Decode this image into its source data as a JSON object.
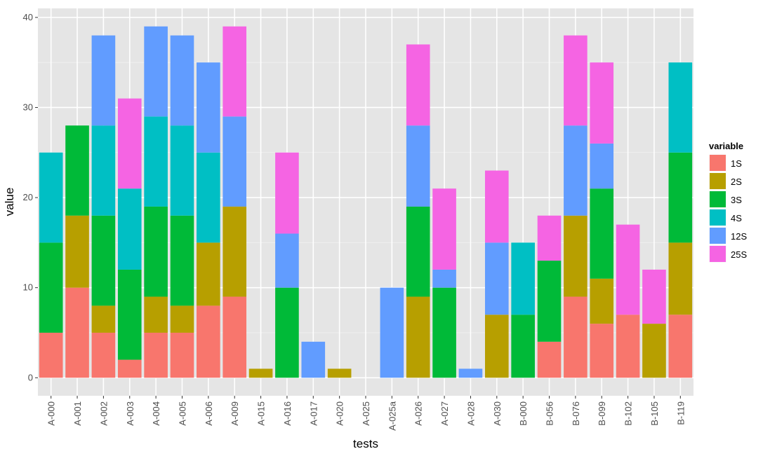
{
  "chart_data": {
    "type": "bar",
    "stacked": true,
    "title": "",
    "xlabel": "tests",
    "ylabel": "value",
    "ylim": [
      -2,
      41
    ],
    "yticks": [
      0,
      10,
      20,
      30,
      40
    ],
    "grid": true,
    "legend_title": "variable",
    "legend_position": "right",
    "categories": [
      "A-000",
      "A-001",
      "A-002",
      "A-003",
      "A-004",
      "A-005",
      "A-006",
      "A-009",
      "A-015",
      "A-016",
      "A-017",
      "A-020",
      "A-025",
      "A-025a",
      "A-026",
      "A-027",
      "A-028",
      "A-030",
      "B-000",
      "B-056",
      "B-076",
      "B-099",
      "B-102",
      "B-105",
      "B-119"
    ],
    "series": [
      {
        "name": "1S",
        "color": "#F8766D",
        "values": [
          5,
          10,
          5,
          2,
          5,
          5,
          8,
          9,
          0,
          0,
          0,
          0,
          0,
          0,
          0,
          0,
          0,
          0,
          0,
          4,
          9,
          6,
          7,
          0,
          7
        ]
      },
      {
        "name": "2S",
        "color": "#B79F00",
        "values": [
          0,
          8,
          3,
          0,
          4,
          3,
          7,
          10,
          1,
          0,
          0,
          1,
          0,
          0,
          9,
          0,
          0,
          7,
          0,
          0,
          9,
          5,
          0,
          6,
          8
        ]
      },
      {
        "name": "3S",
        "color": "#00BA38",
        "values": [
          10,
          10,
          10,
          10,
          10,
          10,
          0,
          0,
          0,
          10,
          0,
          0,
          0,
          0,
          10,
          10,
          0,
          0,
          7,
          9,
          0,
          10,
          0,
          0,
          10
        ]
      },
      {
        "name": "4S",
        "color": "#00BFC4",
        "values": [
          10,
          0,
          10,
          9,
          10,
          10,
          10,
          0,
          0,
          0,
          0,
          0,
          0,
          0,
          0,
          0,
          0,
          0,
          8,
          0,
          0,
          0,
          0,
          0,
          10
        ]
      },
      {
        "name": "12S",
        "color": "#619CFF",
        "values": [
          0,
          0,
          10,
          0,
          10,
          10,
          10,
          10,
          0,
          6,
          4,
          0,
          0,
          10,
          9,
          2,
          1,
          8,
          0,
          0,
          10,
          5,
          0,
          0,
          0
        ]
      },
      {
        "name": "25S",
        "color": "#F564E3",
        "values": [
          0,
          0,
          0,
          10,
          0,
          0,
          0,
          10,
          0,
          9,
          0,
          0,
          0,
          0,
          9,
          9,
          0,
          8,
          0,
          5,
          10,
          9,
          10,
          6,
          0
        ]
      }
    ]
  },
  "colors": {
    "panel_bg": "#E5E5E5",
    "grid_major": "#FFFFFF",
    "grid_minor": "#F2F2F2"
  }
}
